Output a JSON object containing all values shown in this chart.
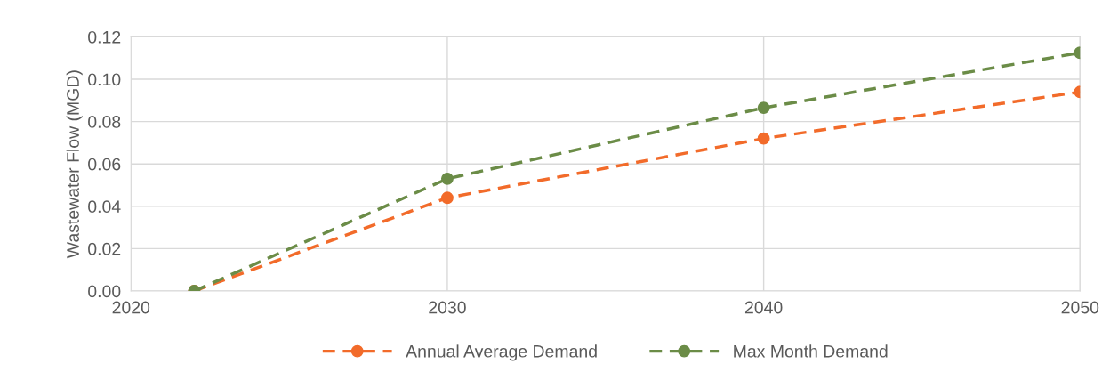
{
  "chart_data": {
    "type": "line",
    "ylabel": "Wastewater Flow (MGD)",
    "x": [
      2022,
      2030,
      2040,
      2050
    ],
    "series": [
      {
        "name": "Annual Average Demand",
        "color": "#f26b2a",
        "values": [
          0.0,
          0.044,
          0.072,
          0.094
        ]
      },
      {
        "name": "Max Month Demand",
        "color": "#6b8c47",
        "values": [
          0.0,
          0.053,
          0.0865,
          0.1125
        ]
      }
    ],
    "xlim": [
      2020,
      2050
    ],
    "xticks": [
      2020,
      2030,
      2040,
      2050
    ],
    "ylim": [
      0,
      0.12
    ],
    "yticks": [
      {
        "value": 0,
        "label": "0.00"
      },
      {
        "value": 0.02,
        "label": "0.02"
      },
      {
        "value": 0.04,
        "label": "0.04"
      },
      {
        "value": 0.06,
        "label": "0.06"
      },
      {
        "value": 0.08,
        "label": "0.08"
      },
      {
        "value": 0.1,
        "label": "0.10"
      },
      {
        "value": 0.12,
        "label": "0.12"
      }
    ],
    "grid": true,
    "legend": "bottom",
    "marker": "circle",
    "line_style": "dashed"
  }
}
